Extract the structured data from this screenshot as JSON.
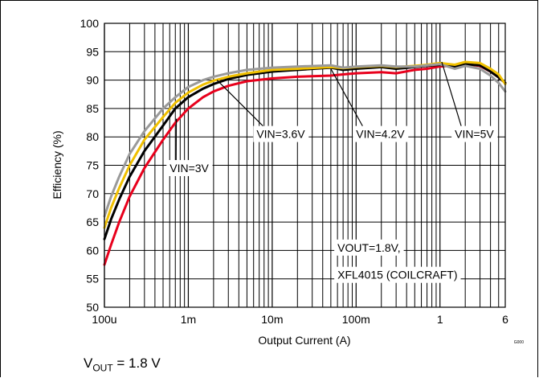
{
  "chart_data": {
    "type": "line",
    "xlabel": "Output Current (A)",
    "ylabel": "Efficiency (%)",
    "x_scale": "log",
    "xlim": [
      0.0001,
      6
    ],
    "ylim": [
      50,
      100
    ],
    "x_ticks": [
      {
        "value": 0.0001,
        "label": "100u"
      },
      {
        "value": 0.001,
        "label": "1m"
      },
      {
        "value": 0.01,
        "label": "10m"
      },
      {
        "value": 0.1,
        "label": "100m"
      },
      {
        "value": 1,
        "label": "1"
      },
      {
        "value": 6,
        "label": "6"
      }
    ],
    "y_ticks": [
      50,
      55,
      60,
      65,
      70,
      75,
      80,
      85,
      90,
      95,
      100
    ],
    "grid": true,
    "figure_note": "G000",
    "annotations": [
      {
        "text": "VIN=3V",
        "x": 0.0006,
        "y": 73.8,
        "arrow_to": [
          0.00072,
          83.2
        ]
      },
      {
        "text": "VIN=3.6V",
        "x": 0.0065,
        "y": 79.8,
        "arrow_to": [
          0.0022,
          90.0
        ]
      },
      {
        "text": "VIN=4.2V",
        "x": 0.1,
        "y": 79.8,
        "arrow_to": [
          0.05,
          92.0
        ]
      },
      {
        "text": "VIN=5V",
        "x": 1.5,
        "y": 79.8,
        "arrow_to": [
          1.05,
          93.2
        ]
      },
      {
        "text": "VOUT=1.8V,",
        "x": 0.06,
        "y": 59.8
      },
      {
        "text": "XFL4015 (COILCRAFT)",
        "x": 0.06,
        "y": 55.0
      }
    ],
    "series": [
      {
        "color": "#e8001c",
        "points": [
          [
            0.0001,
            57.5
          ],
          [
            0.00012,
            61
          ],
          [
            0.00015,
            65
          ],
          [
            0.0002,
            69.5
          ],
          [
            0.0003,
            74.5
          ],
          [
            0.0005,
            79.5
          ],
          [
            0.0007,
            82.5
          ],
          [
            0.001,
            85
          ],
          [
            0.0015,
            87
          ],
          [
            0.002,
            88
          ],
          [
            0.003,
            89
          ],
          [
            0.005,
            89.8
          ],
          [
            0.01,
            90.3
          ],
          [
            0.02,
            90.6
          ],
          [
            0.05,
            90.8
          ],
          [
            0.07,
            91
          ],
          [
            0.1,
            91.2
          ],
          [
            0.2,
            91.4
          ],
          [
            0.3,
            91.2
          ],
          [
            0.5,
            91.8
          ],
          [
            0.7,
            92
          ],
          [
            1,
            92.4
          ],
          [
            1.5,
            92.6
          ],
          [
            2,
            92.8
          ],
          [
            3,
            92.5
          ],
          [
            4,
            91.5
          ],
          [
            5,
            90.5
          ],
          [
            6,
            89.5
          ]
        ]
      },
      {
        "color": "#000000",
        "points": [
          [
            0.0001,
            62
          ],
          [
            0.00012,
            65.5
          ],
          [
            0.00015,
            69
          ],
          [
            0.0002,
            73
          ],
          [
            0.0003,
            77.5
          ],
          [
            0.0005,
            82
          ],
          [
            0.0007,
            85
          ],
          [
            0.001,
            87
          ],
          [
            0.0015,
            88.5
          ],
          [
            0.002,
            89.3
          ],
          [
            0.003,
            90.2
          ],
          [
            0.005,
            90.9
          ],
          [
            0.01,
            91.5
          ],
          [
            0.02,
            91.8
          ],
          [
            0.05,
            92.2
          ],
          [
            0.07,
            91.8
          ],
          [
            0.1,
            92
          ],
          [
            0.2,
            92.3
          ],
          [
            0.3,
            92
          ],
          [
            0.5,
            92.3
          ],
          [
            0.7,
            92.5
          ],
          [
            1,
            92.7
          ],
          [
            1.5,
            92.4
          ],
          [
            2,
            92.8
          ],
          [
            3,
            92.6
          ],
          [
            4,
            91.5
          ],
          [
            5,
            90.5
          ],
          [
            6,
            89.5
          ]
        ]
      },
      {
        "color": "#f0c000",
        "points": [
          [
            0.0001,
            64
          ],
          [
            0.00012,
            67.5
          ],
          [
            0.00015,
            71
          ],
          [
            0.0002,
            75
          ],
          [
            0.0003,
            79.5
          ],
          [
            0.0005,
            83.5
          ],
          [
            0.0007,
            86
          ],
          [
            0.001,
            87.8
          ],
          [
            0.0015,
            89.2
          ],
          [
            0.002,
            89.9
          ],
          [
            0.003,
            90.6
          ],
          [
            0.005,
            91.2
          ],
          [
            0.01,
            91.8
          ],
          [
            0.02,
            92
          ],
          [
            0.05,
            92.3
          ],
          [
            0.07,
            92.1
          ],
          [
            0.1,
            92.3
          ],
          [
            0.2,
            92.5
          ],
          [
            0.3,
            92.3
          ],
          [
            0.5,
            92.5
          ],
          [
            0.7,
            92.7
          ],
          [
            1,
            93
          ],
          [
            1.5,
            92.7
          ],
          [
            2,
            93.2
          ],
          [
            3,
            93
          ],
          [
            4,
            92
          ],
          [
            5,
            91
          ],
          [
            6,
            89.3
          ]
        ]
      },
      {
        "color": "#9a9a9a",
        "points": [
          [
            0.0001,
            66
          ],
          [
            0.00012,
            69.5
          ],
          [
            0.00015,
            73
          ],
          [
            0.0002,
            77
          ],
          [
            0.0003,
            81
          ],
          [
            0.0005,
            85
          ],
          [
            0.0007,
            87
          ],
          [
            0.001,
            88.8
          ],
          [
            0.0015,
            90
          ],
          [
            0.002,
            90.6
          ],
          [
            0.003,
            91.2
          ],
          [
            0.005,
            91.8
          ],
          [
            0.01,
            92.2
          ],
          [
            0.02,
            92.4
          ],
          [
            0.05,
            92.6
          ],
          [
            0.07,
            92.2
          ],
          [
            0.1,
            92.4
          ],
          [
            0.2,
            92.6
          ],
          [
            0.3,
            92.4
          ],
          [
            0.5,
            92.4
          ],
          [
            0.7,
            92.6
          ],
          [
            1,
            92.8
          ],
          [
            1.5,
            92
          ],
          [
            2,
            92.5
          ],
          [
            3,
            92
          ],
          [
            4,
            90.8
          ],
          [
            5,
            89.5
          ],
          [
            6,
            88
          ]
        ]
      }
    ]
  },
  "caption": {
    "prefix": "V",
    "subscript": "OUT",
    "suffix": " = 1.8 V"
  }
}
